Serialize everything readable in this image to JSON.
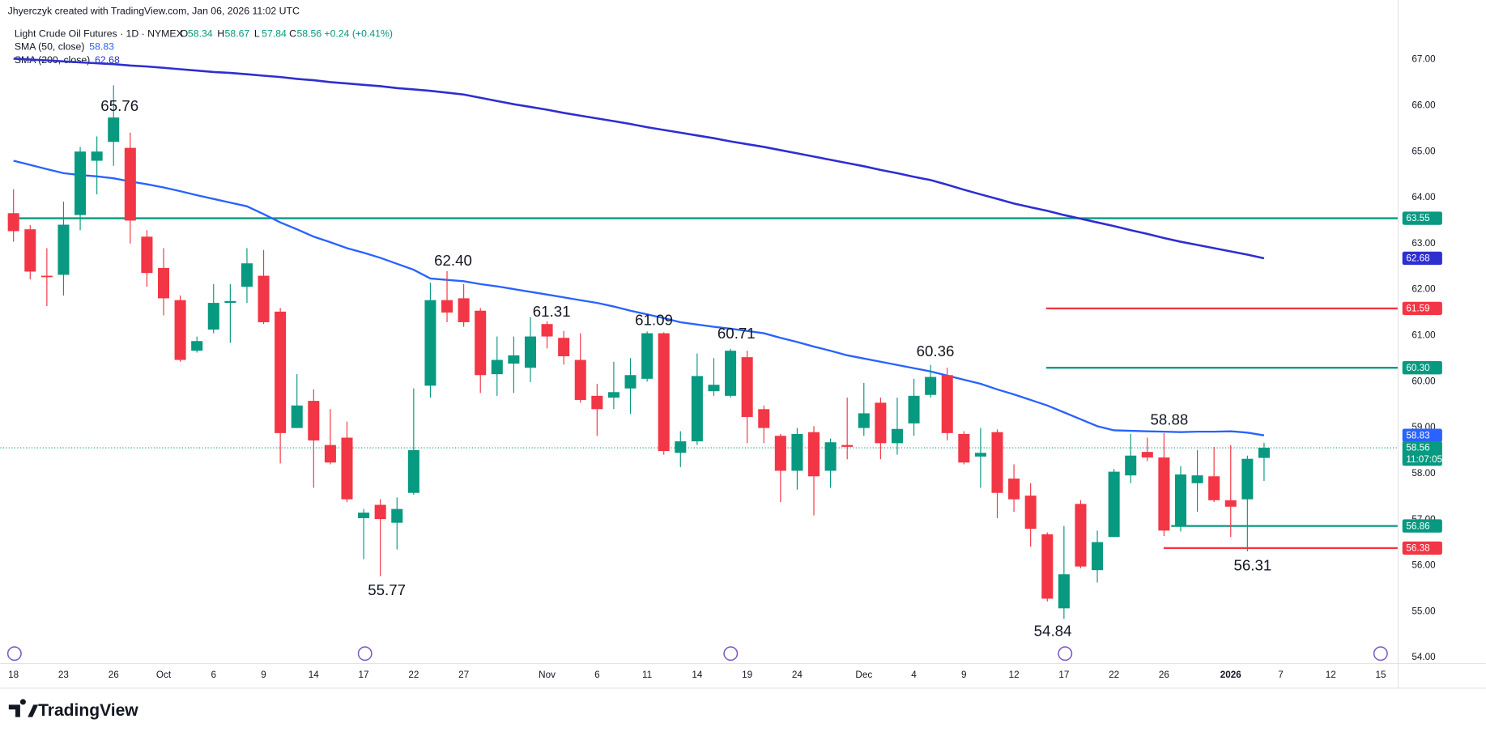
{
  "credit": "Jhyerczyk created with TradingView.com, Jan 06, 2026 11:02 UTC",
  "brand": "TradingView",
  "chart_data": {
    "type": "candlestick",
    "title": "Light Crude Oil Futures · 1D · NYMEX",
    "ohlc_letters": [
      "O",
      "H",
      "L",
      "C"
    ],
    "change": "+0.24 (+0.41%)",
    "countdown": "11:07:05",
    "up_color": "#089981",
    "down_color": "#f23645",
    "categories": [
      "18",
      null,
      null,
      "23",
      null,
      null,
      "26",
      null,
      null,
      "Oct",
      null,
      null,
      "6",
      null,
      null,
      "9",
      null,
      null,
      "14",
      null,
      null,
      "17",
      null,
      null,
      "22",
      null,
      null,
      "27",
      null,
      null,
      null,
      null,
      "Nov",
      null,
      null,
      "6",
      null,
      null,
      "11",
      null,
      null,
      "14",
      null,
      null,
      "19",
      null,
      null,
      "24",
      null,
      null,
      null,
      "Dec",
      null,
      null,
      "4",
      null,
      null,
      "9",
      null,
      null,
      "12",
      null,
      null,
      "17",
      null,
      null,
      "22",
      null,
      null,
      "26",
      null,
      null,
      null,
      "2026",
      null,
      null,
      "7",
      null,
      null,
      "12",
      null,
      null,
      "15"
    ],
    "open": [
      63.66,
      63.31,
      62.3,
      62.32,
      63.62,
      64.8,
      65.21,
      65.08,
      63.15,
      62.47,
      61.77,
      60.67,
      61.13,
      61.71,
      62.06,
      62.3,
      61.52,
      58.99,
      59.58,
      58.62,
      58.78,
      57.03,
      57.32,
      56.93,
      57.58,
      59.91,
      61.77,
      61.81,
      61.54,
      60.16,
      60.39,
      60.3,
      61.25,
      60.95,
      60.47,
      59.69,
      59.65,
      59.85,
      60.06,
      61.05,
      58.45,
      58.7,
      59.79,
      59.69,
      60.53,
      59.4,
      58.82,
      58.06,
      58.9,
      58.06,
      58.62,
      58.99,
      59.54,
      58.66,
      59.09,
      59.71,
      60.14,
      58.86,
      58.37,
      58.9,
      57.89,
      57.52,
      56.68,
      55.07,
      57.34,
      55.9,
      56.62,
      57.96,
      58.47,
      58.35,
      56.88,
      57.79,
      57.94,
      57.42,
      57.44,
      58.34,
      null,
      null,
      null,
      null,
      null,
      null,
      null
    ],
    "high": [
      64.18,
      63.4,
      62.9,
      63.91,
      65.1,
      65.33,
      66.44,
      65.41,
      63.29,
      62.9,
      61.87,
      60.98,
      62.12,
      62.12,
      62.9,
      62.86,
      61.6,
      60.16,
      59.83,
      59.4,
      59.13,
      57.23,
      57.44,
      57.48,
      59.85,
      62.15,
      62.4,
      62.12,
      61.6,
      60.98,
      60.98,
      61.4,
      61.31,
      61.1,
      61.05,
      59.95,
      60.43,
      60.51,
      61.09,
      61.07,
      58.92,
      60.61,
      60.51,
      60.71,
      60.67,
      59.48,
      58.86,
      58.99,
      59.03,
      58.76,
      59.65,
      59.97,
      59.65,
      59.65,
      60.06,
      60.36,
      60.3,
      58.92,
      58.99,
      58.96,
      58.2,
      57.79,
      56.72,
      56.86,
      57.42,
      56.76,
      58.1,
      58.86,
      58.78,
      58.88,
      58.16,
      58.51,
      58.58,
      58.62,
      58.39,
      58.67,
      null,
      null,
      null,
      null,
      null,
      null,
      null
    ],
    "low": [
      63.04,
      62.22,
      61.64,
      61.87,
      63.29,
      64.07,
      64.69,
      63.0,
      62.06,
      61.44,
      60.43,
      60.63,
      61.05,
      60.84,
      61.71,
      61.25,
      58.22,
      58.99,
      57.69,
      58.2,
      57.38,
      56.14,
      55.77,
      56.35,
      57.54,
      59.65,
      61.29,
      61.19,
      59.75,
      59.69,
      59.75,
      59.99,
      60.72,
      60.37,
      59.54,
      58.82,
      59.4,
      59.3,
      60.0,
      58.41,
      58.14,
      58.62,
      59.69,
      59.65,
      58.66,
      58.66,
      57.38,
      57.65,
      57.09,
      57.69,
      58.31,
      58.82,
      58.31,
      58.41,
      58.82,
      59.65,
      58.72,
      58.2,
      57.69,
      57.03,
      57.17,
      56.41,
      55.22,
      54.84,
      55.94,
      55.63,
      56.62,
      57.79,
      58.27,
      56.64,
      56.74,
      57.17,
      57.38,
      56.62,
      56.31,
      57.84,
      null,
      null,
      null,
      null,
      null,
      null,
      null
    ],
    "close": [
      63.27,
      62.39,
      62.28,
      63.41,
      65.0,
      65.0,
      65.74,
      63.5,
      62.36,
      61.81,
      60.47,
      60.88,
      61.71,
      61.75,
      62.57,
      61.29,
      58.88,
      59.48,
      58.72,
      58.24,
      57.44,
      57.15,
      57.01,
      57.23,
      58.51,
      61.77,
      61.5,
      61.29,
      60.14,
      60.47,
      60.57,
      60.98,
      60.98,
      60.55,
      59.6,
      59.4,
      59.77,
      60.14,
      61.05,
      58.49,
      58.7,
      60.12,
      59.93,
      60.67,
      59.23,
      58.99,
      58.06,
      58.86,
      57.94,
      58.68,
      58.58,
      59.31,
      58.66,
      58.97,
      59.69,
      60.1,
      58.88,
      58.24,
      58.45,
      57.58,
      57.44,
      56.8,
      55.28,
      55.81,
      55.98,
      56.51,
      58.04,
      58.39,
      58.35,
      56.76,
      57.98,
      57.96,
      57.42,
      57.28,
      58.32,
      58.56,
      null,
      null,
      null,
      null,
      null,
      null,
      null
    ],
    "sma": [
      {
        "name": "SMA (50, close)",
        "color": "#2962ff",
        "values": [
          64.8,
          64.71,
          64.62,
          64.53,
          64.49,
          64.46,
          64.42,
          64.35,
          64.29,
          64.22,
          64.14,
          64.05,
          63.97,
          63.89,
          63.81,
          63.64,
          63.46,
          63.31,
          63.15,
          63.03,
          62.9,
          62.8,
          62.69,
          62.56,
          62.43,
          62.24,
          62.21,
          62.18,
          62.12,
          62.07,
          62.01,
          61.95,
          61.89,
          61.83,
          61.77,
          61.71,
          61.63,
          61.54,
          61.46,
          61.38,
          61.29,
          61.24,
          61.19,
          61.15,
          61.1,
          61.05,
          60.95,
          60.86,
          60.76,
          60.67,
          60.57,
          60.5,
          60.43,
          60.36,
          60.29,
          60.22,
          60.13,
          60.04,
          59.95,
          59.83,
          59.72,
          59.6,
          59.48,
          59.33,
          59.18,
          59.03,
          58.94,
          58.93,
          58.92,
          58.91,
          58.9,
          58.91,
          58.91,
          58.92,
          58.89,
          58.83,
          null,
          null,
          null,
          null,
          null,
          null,
          null
        ]
      },
      {
        "name": "SMA (200, close)",
        "color": "#2e2ed1",
        "values": [
          67.02,
          67.0,
          66.98,
          66.96,
          66.94,
          66.92,
          66.9,
          66.87,
          66.85,
          66.82,
          66.79,
          66.76,
          66.73,
          66.71,
          66.68,
          66.65,
          66.62,
          66.58,
          66.55,
          66.51,
          66.48,
          66.45,
          66.42,
          66.38,
          66.35,
          66.32,
          66.28,
          66.24,
          66.17,
          66.1,
          66.03,
          65.97,
          65.91,
          65.84,
          65.78,
          65.72,
          65.66,
          65.6,
          65.53,
          65.47,
          65.41,
          65.35,
          65.29,
          65.22,
          65.16,
          65.1,
          65.03,
          64.96,
          64.89,
          64.82,
          64.75,
          64.68,
          64.6,
          64.53,
          64.45,
          64.38,
          64.28,
          64.17,
          64.07,
          63.97,
          63.87,
          63.79,
          63.71,
          63.62,
          63.54,
          63.46,
          63.38,
          63.29,
          63.21,
          63.12,
          63.04,
          62.97,
          62.9,
          62.83,
          62.76,
          62.68,
          null,
          null,
          null,
          null,
          null,
          null,
          null
        ]
      }
    ],
    "levels": [
      {
        "value": 63.55,
        "label": "63.55",
        "color": "#089981"
      },
      {
        "value": 61.59,
        "label": "61.59",
        "color": "#f23645"
      },
      {
        "value": 60.3,
        "label": "60.30",
        "color": "#089981"
      },
      {
        "value": 56.86,
        "label": "56.86",
        "color": "#089981"
      },
      {
        "value": 56.38,
        "label": "56.38",
        "color": "#f23645"
      }
    ],
    "annotations": [
      "65.76",
      "62.40",
      "61.31",
      "61.09",
      "60.71",
      "60.36",
      "58.88",
      "55.77",
      "54.84",
      "56.31"
    ],
    "ylim": [
      53.88,
      68.13
    ],
    "yticks": [
      {
        "value": 54,
        "label": "54.00"
      },
      {
        "value": 55,
        "label": "55.00"
      },
      {
        "value": 56,
        "label": "56.00"
      },
      {
        "value": 57,
        "label": "57.00"
      },
      {
        "value": 58,
        "label": "58.00"
      },
      {
        "value": 59,
        "label": "59.00"
      },
      {
        "value": 60,
        "label": "60.00"
      },
      {
        "value": 61,
        "label": "61.00"
      },
      {
        "value": 62,
        "label": "62.00"
      },
      {
        "value": 63,
        "label": "63.00"
      },
      {
        "value": 64,
        "label": "64.00"
      },
      {
        "value": 65,
        "label": "65.00"
      },
      {
        "value": 66,
        "label": "66.00"
      },
      {
        "value": 67,
        "label": "67.00"
      }
    ],
    "grid": false
  }
}
